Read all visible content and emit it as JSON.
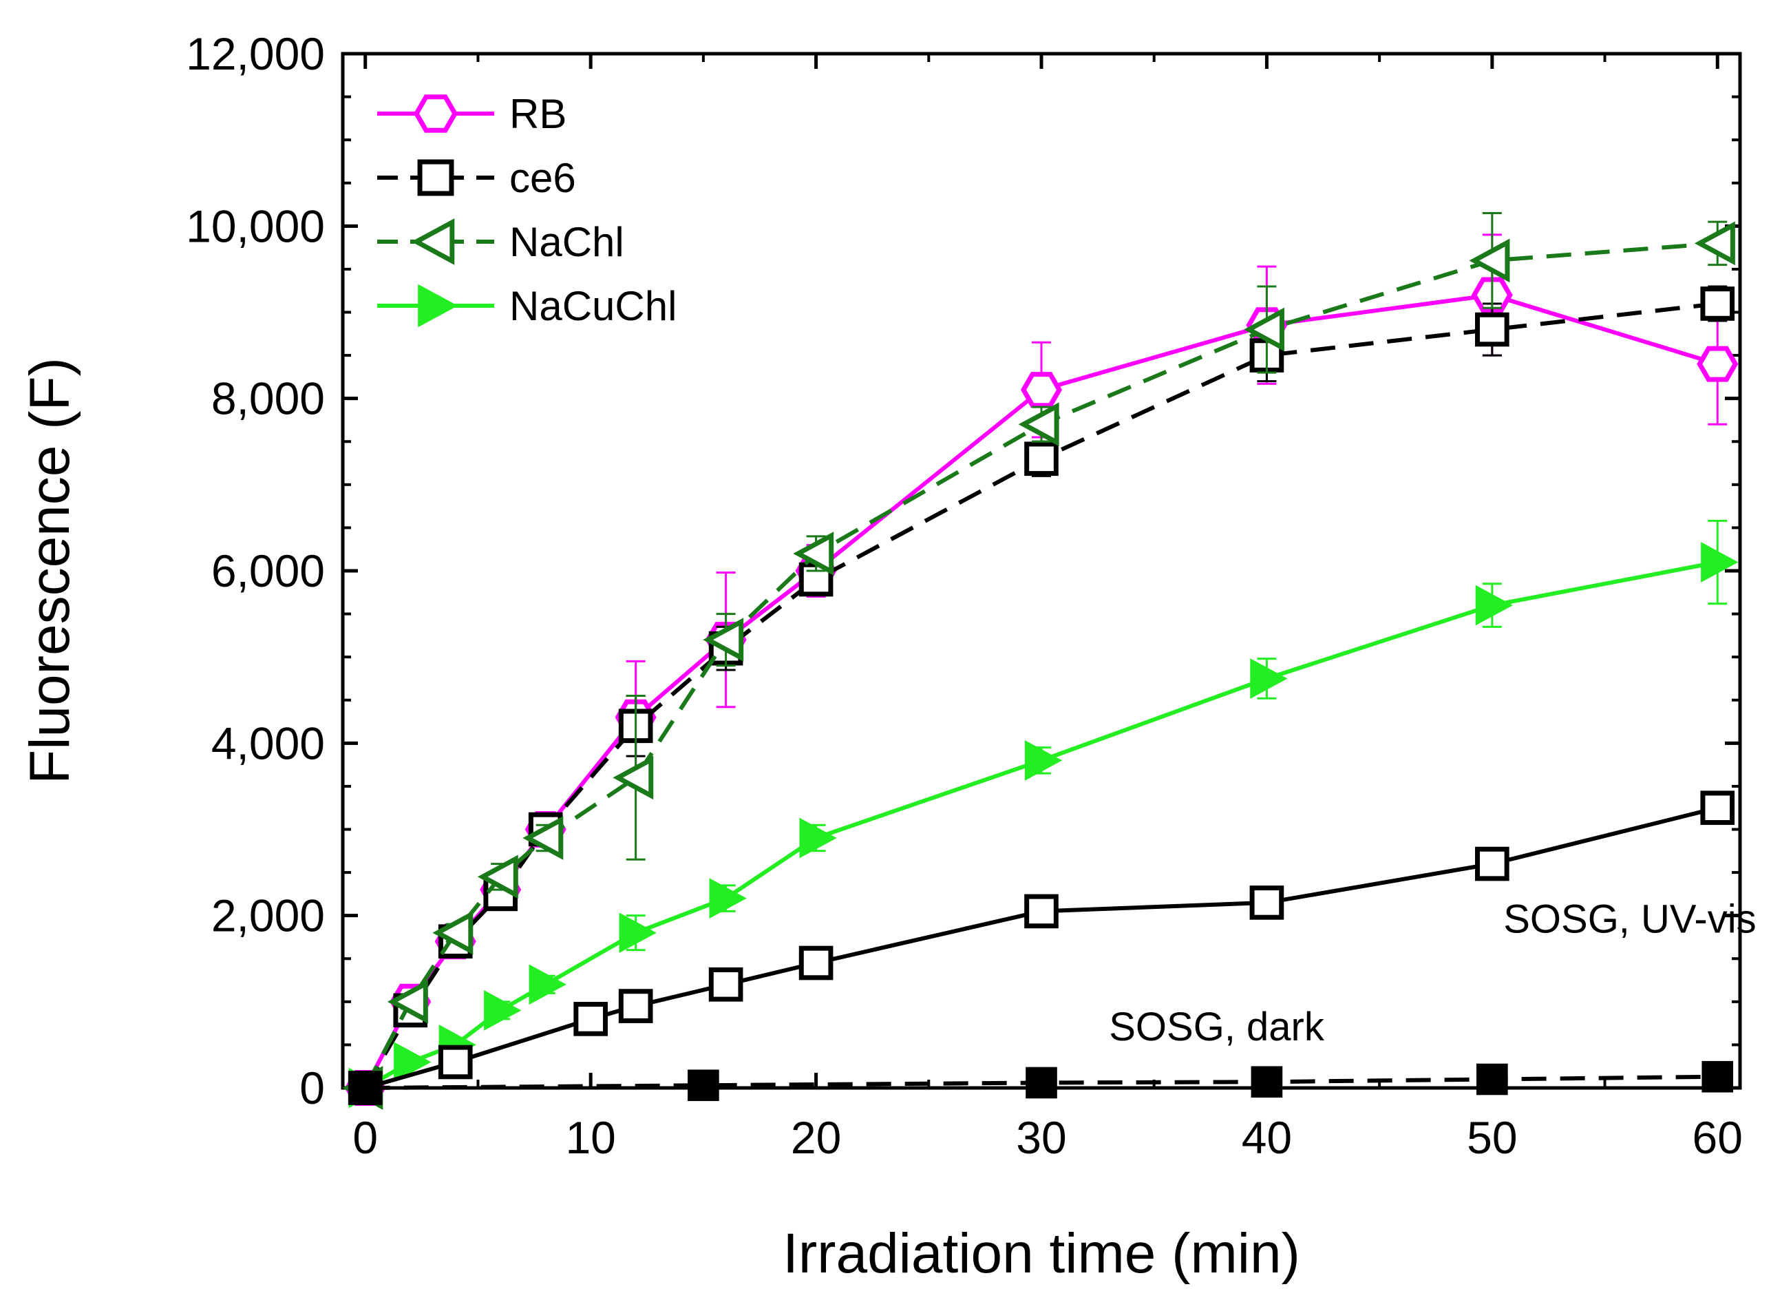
{
  "chart_data": {
    "type": "line",
    "title": "",
    "xlabel": "Irradiation time (min)",
    "ylabel": "Fluorescence (F)",
    "xlim": [
      -1,
      61
    ],
    "ylim": [
      0,
      12000
    ],
    "xticks": [
      0,
      10,
      20,
      30,
      40,
      50,
      60
    ],
    "xtick_labels": [
      "0",
      "10",
      "20",
      "30",
      "40",
      "50",
      "60"
    ],
    "yticks": [
      0,
      2000,
      4000,
      6000,
      8000,
      10000,
      12000
    ],
    "ytick_labels": [
      "0",
      "2,000",
      "4,000",
      "6,000",
      "8,000",
      "10,000",
      "12,000"
    ],
    "legend_position": "top-left",
    "series": [
      {
        "name": "RB",
        "color": "#ff00ff",
        "marker": "hexagon",
        "dash": "solid",
        "in_legend": true,
        "x": [
          0,
          2,
          4,
          6,
          8,
          12,
          16,
          20,
          30,
          40,
          50,
          60
        ],
        "y": [
          0,
          1000,
          1700,
          2300,
          3000,
          4300,
          5200,
          6000,
          8100,
          8850,
          9200,
          8400
        ],
        "err": [
          80,
          90,
          120,
          150,
          200,
          650,
          780,
          300,
          550,
          680,
          700,
          700
        ]
      },
      {
        "name": "ce6",
        "color": "#000000",
        "marker": "square",
        "dash": "dashed",
        "in_legend": true,
        "x": [
          0,
          2,
          4,
          6,
          8,
          12,
          16,
          20,
          30,
          40,
          50,
          60
        ],
        "y": [
          0,
          900,
          1700,
          2250,
          3000,
          4200,
          5100,
          5900,
          7300,
          8500,
          8800,
          9100
        ],
        "err": [
          60,
          80,
          100,
          120,
          150,
          350,
          250,
          150,
          200,
          300,
          300,
          200
        ]
      },
      {
        "name": "NaChl",
        "color": "#1a7a1a",
        "marker": "triangle-left",
        "dash": "dashed",
        "in_legend": true,
        "x": [
          0,
          2,
          4,
          6,
          8,
          12,
          16,
          20,
          30,
          40,
          50,
          60
        ],
        "y": [
          0,
          1000,
          1800,
          2450,
          2900,
          3600,
          5200,
          6200,
          7700,
          8800,
          9600,
          9800
        ],
        "err": [
          60,
          80,
          100,
          150,
          150,
          950,
          300,
          200,
          200,
          500,
          550,
          250
        ]
      },
      {
        "name": "NaCuChl",
        "color": "#22ee22",
        "marker": "triangle-right",
        "dash": "solid",
        "in_legend": true,
        "x": [
          0,
          2,
          4,
          6,
          8,
          12,
          16,
          20,
          30,
          40,
          50,
          60
        ],
        "y": [
          0,
          300,
          500,
          900,
          1200,
          1800,
          2200,
          2900,
          3800,
          4750,
          5600,
          6100
        ],
        "err": [
          40,
          60,
          80,
          100,
          100,
          200,
          150,
          150,
          150,
          230,
          250,
          480
        ]
      },
      {
        "name": "SOSG, UV-vis",
        "color": "#000000",
        "marker": "square",
        "dash": "solid",
        "in_legend": false,
        "x": [
          0,
          4,
          10,
          12,
          16,
          20,
          30,
          40,
          50,
          60
        ],
        "y": [
          0,
          300,
          800,
          950,
          1200,
          1450,
          2050,
          2150,
          2600,
          3250
        ],
        "err": [
          40,
          40,
          60,
          60,
          80,
          80,
          90,
          100,
          100,
          120
        ]
      },
      {
        "name": "SOSG, dark",
        "color": "#000000",
        "marker": "filled-square",
        "dash": "dashed",
        "in_legend": false,
        "x": [
          0,
          15,
          30,
          40,
          50,
          60
        ],
        "y": [
          0,
          30,
          60,
          70,
          100,
          130
        ],
        "err": [
          0,
          0,
          0,
          0,
          0,
          0
        ]
      }
    ],
    "annotations": [
      {
        "text": "SOSG, UV-vis",
        "x": 50.5,
        "y": 1800
      },
      {
        "text": "SOSG, dark",
        "x": 33,
        "y": 550
      }
    ]
  }
}
